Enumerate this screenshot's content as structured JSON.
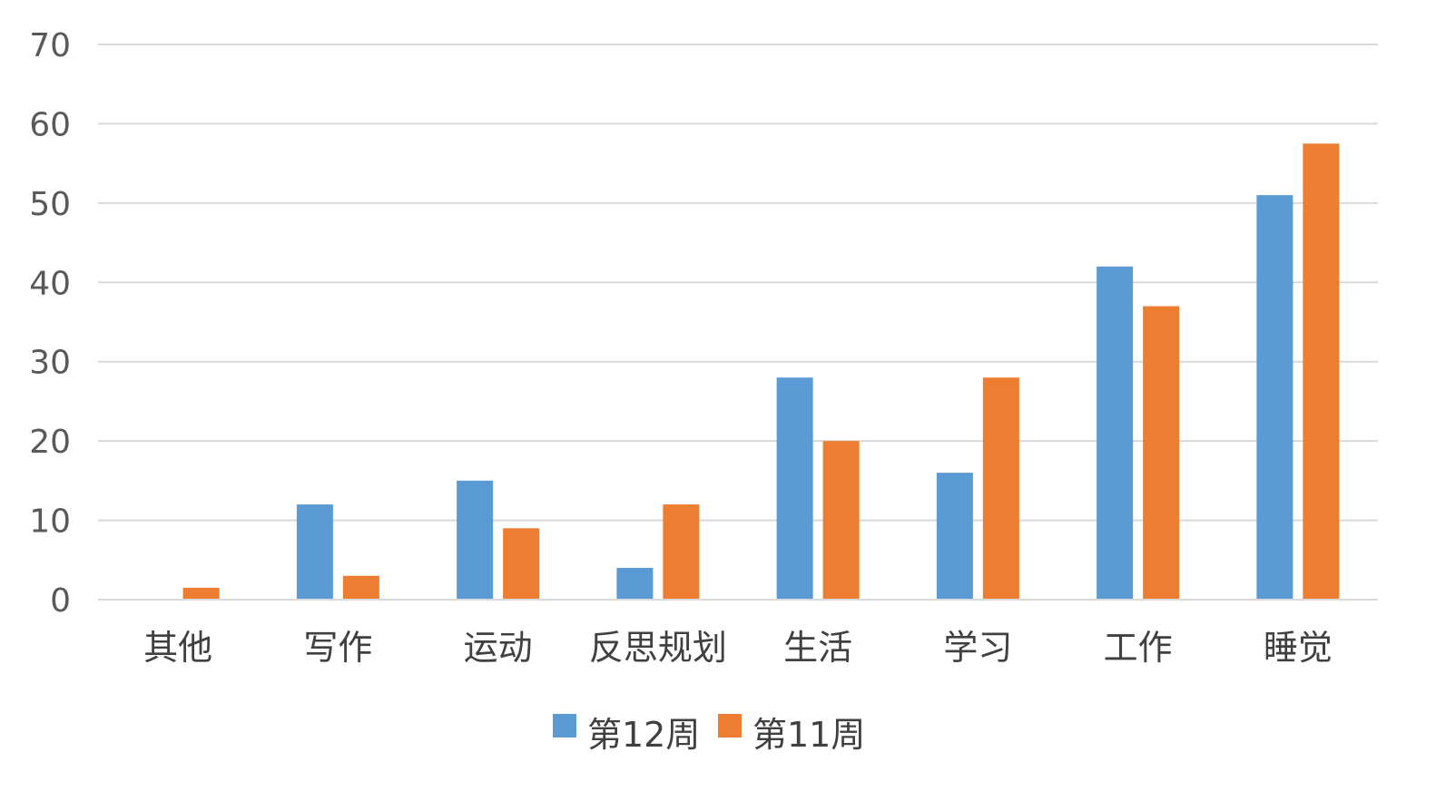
{
  "chart_data": {
    "type": "bar",
    "title": "",
    "xlabel": "",
    "ylabel": "",
    "categories": [
      "其他",
      "写作",
      "运动",
      "反思规划",
      "生活",
      "学习",
      "工作",
      "睡觉"
    ],
    "series": [
      {
        "name": "第12周",
        "color": "#5b9bd5",
        "values": [
          0,
          12,
          15,
          4,
          28,
          16,
          42,
          51
        ]
      },
      {
        "name": "第11周",
        "color": "#ed7d31",
        "values": [
          1.5,
          3,
          9,
          12,
          20,
          28,
          37,
          57.5
        ]
      }
    ],
    "ylim": [
      0,
      70
    ],
    "yticks": [
      0,
      10,
      20,
      30,
      40,
      50,
      60,
      70
    ],
    "grid": true,
    "legend_position": "bottom"
  }
}
